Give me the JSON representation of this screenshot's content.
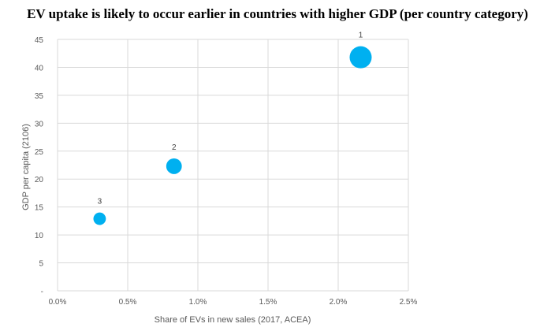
{
  "chart_data": {
    "type": "scatter",
    "variant": "bubble",
    "title": "EV uptake is likely to occur earlier in countries with higher GDP (per country category)",
    "xlabel": "Share of EVs in new sales (2017, ACEA)",
    "ylabel": "GDP per capita (2106)",
    "xlim": [
      0,
      2.5
    ],
    "ylim": [
      0,
      45
    ],
    "x_ticks": [
      "0.0%",
      "0.5%",
      "1.0%",
      "1.5%",
      "2.0%",
      "2.5%"
    ],
    "y_ticks": [
      "-",
      "5",
      "10",
      "15",
      "20",
      "25",
      "30",
      "35",
      "40",
      "45"
    ],
    "grid": true,
    "bubble_color": "#00b0f0",
    "points": [
      {
        "label": "1",
        "x": 2.16,
        "y": 41.8,
        "size": 1.0
      },
      {
        "label": "2",
        "x": 0.83,
        "y": 22.3,
        "size": 0.5
      },
      {
        "label": "3",
        "x": 0.3,
        "y": 12.9,
        "size": 0.32
      }
    ]
  }
}
